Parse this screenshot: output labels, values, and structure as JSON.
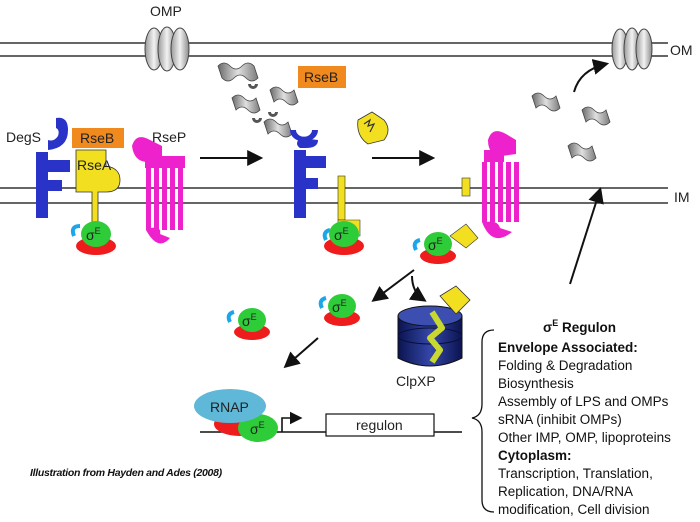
{
  "labels": {
    "omp": "OMP",
    "om": "OM",
    "im": "IM",
    "degs": "DegS",
    "rseb_1": "RseB",
    "rseb_2": "RseB",
    "rsea": "RseA",
    "rsep": "RseP",
    "sigma_base": "σ",
    "sigma_sup": "E",
    "clpxp": "ClpXP",
    "rnap": "RNAP",
    "regulon_box": "regulon"
  },
  "regulon_panel": {
    "title_sigma": "σ",
    "title_sup": "E",
    "title_rest": "Regulon",
    "envelope_header": "Envelope Associated:",
    "envelope_items": [
      "Folding & Degradation",
      "Biosynthesis",
      "Assembly of LPS and OMPs",
      "sRNA (inhibit OMPs)",
      "Other IMP, OMP, lipoproteins"
    ],
    "cytoplasm_header": "Cytoplasm:",
    "cytoplasm_items": [
      "Transcription, Translation,",
      "Replication, DNA/RNA",
      "modification, Cell division"
    ]
  },
  "caption": "Illustration from  Hayden and Ades (2008)",
  "colors": {
    "degs": "#2a33c8",
    "rseb": "#f08a1e",
    "rsea": "#f2e020",
    "rsep": "#ee22cc",
    "sigma_green": "#2fcc3a",
    "sigma_red": "#ee1c1c",
    "sigma_link": "#1aa6e8",
    "rnap": "#5fb8d8",
    "clpxp": "#1b2a7a",
    "membrane": "#333333"
  }
}
